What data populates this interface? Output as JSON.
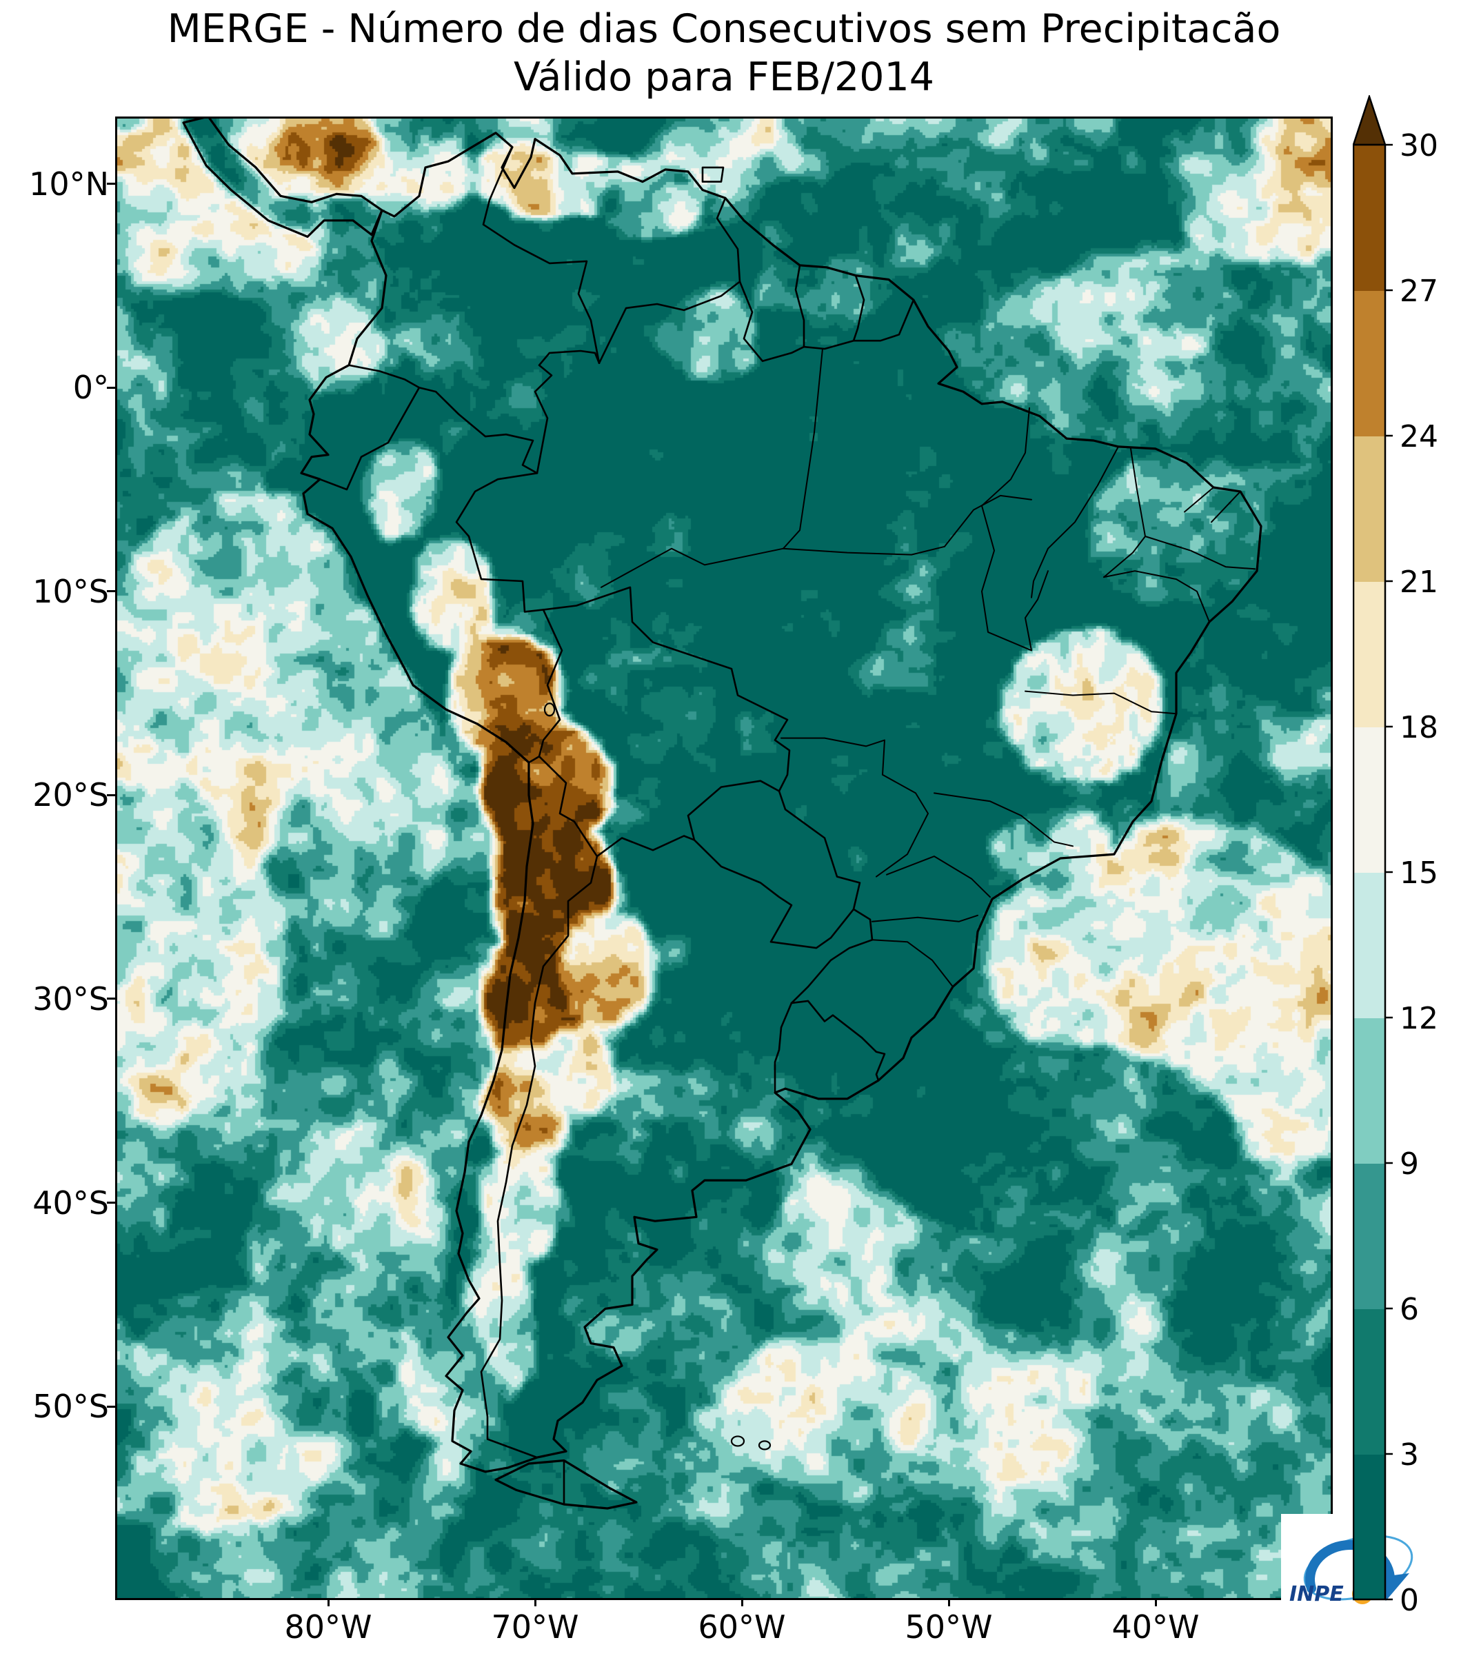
{
  "title": {
    "line1": "MERGE - Número de dias Consecutivos sem Precipitacão",
    "line2": "Válido para FEB/2014"
  },
  "axes": {
    "y_ticks": [
      "10°N",
      "0°",
      "10°S",
      "20°S",
      "30°S",
      "40°S",
      "50°S"
    ],
    "x_ticks": [
      "80°W",
      "70°W",
      "60°W",
      "50°W",
      "40°W"
    ]
  },
  "colorbar": {
    "tick_labels": [
      "0",
      "3",
      "6",
      "9",
      "12",
      "15",
      "18",
      "21",
      "24",
      "27",
      "30"
    ],
    "colors": [
      "#01665e",
      "#117a6d",
      "#35978f",
      "#80cdc1",
      "#c7eae5",
      "#f5f4ec",
      "#f6e8c3",
      "#dfc27d",
      "#bf812d",
      "#8c510a"
    ],
    "over_color": "#543005"
  },
  "logo": {
    "text": "INPE"
  },
  "chart_data": {
    "type": "heatmap",
    "title": "MERGE - Número de dias Consecutivos sem Precipitacão",
    "subtitle": "Válido para FEB/2014",
    "variable": "número de dias consecutivos sem precipitação",
    "bin_edges": [
      0,
      3,
      6,
      9,
      12,
      15,
      18,
      21,
      24,
      27,
      30
    ],
    "bin_colors": [
      "#01665e",
      "#117a6d",
      "#35978f",
      "#80cdc1",
      "#c7eae5",
      "#f5f4ec",
      "#f6e8c3",
      "#dfc27d",
      "#bf812d",
      "#8c510a"
    ],
    "over_color": "#543005",
    "colormap": "teal-white-brown diverging (BrBG reversed), discrete steps of 3 days, arrow extension above 30",
    "region": "South America",
    "extent": {
      "lon_ticks": [
        "80°W",
        "70°W",
        "60°W",
        "50°W",
        "40°W"
      ],
      "lat_ticks": [
        "10°N",
        "0°",
        "10°S",
        "20°S",
        "30°S",
        "40°S",
        "50°S"
      ]
    },
    "legend_position": "right vertical colorbar",
    "notable_features": [
      "Amazon basin and central Brazil near 0-3 dry days (dark teal)",
      "Atacama / Andes strip 20°S-35°S above 24-30 dry days (dark brown)",
      "White/cream patch over SE Brazil and adjacent Atlantic (12-18 days)",
      "Brown spot on Venezuelan Caribbean coast",
      "Pale mottled Pacific west of Peru with brown speckles"
    ]
  }
}
